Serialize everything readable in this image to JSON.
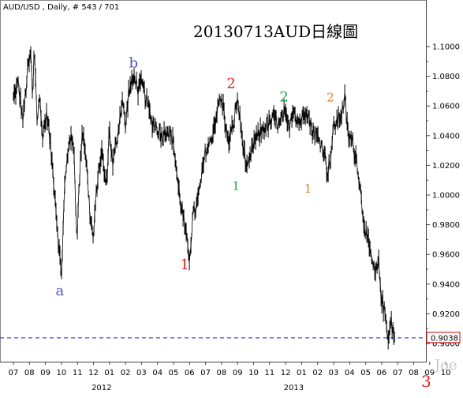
{
  "header": {
    "symbol_info": "AUD/USD , Daily, # 543 / 701",
    "title": "20130713AUD日線圖"
  },
  "footer": {
    "watermark": "Joe",
    "page_number": "3"
  },
  "colors": {
    "price": "#000000",
    "dashed_line": "#1a1acc",
    "price_tag_border": "#cc0000",
    "wave_a_b": "#5050c8",
    "wave_red": "#e02020",
    "wave_green": "#20a040",
    "wave_orange": "#e08030"
  },
  "chart_data": {
    "type": "ohlc",
    "title": "20130713AUD日線圖",
    "subtitle": "AUD/USD , Daily, # 543 / 701",
    "y_axis_position": "right",
    "ylim": [
      0.898,
      1.115
    ],
    "y_ticks": [
      {
        "value": 1.1,
        "label": "1.1000"
      },
      {
        "value": 1.08,
        "label": "1.0800"
      },
      {
        "value": 1.06,
        "label": "1.0600"
      },
      {
        "value": 1.04,
        "label": "1.0400"
      },
      {
        "value": 1.02,
        "label": "1.0200"
      },
      {
        "value": 1.0,
        "label": "1.0000"
      },
      {
        "value": 0.98,
        "label": "0.9800"
      },
      {
        "value": 0.96,
        "label": "0.9600"
      },
      {
        "value": 0.94,
        "label": "0.9400"
      },
      {
        "value": 0.92,
        "label": "0.9200"
      },
      {
        "value": 0.9,
        "label": "0.9000"
      }
    ],
    "x_tick_labels": [
      "07",
      "08",
      "09",
      "10",
      "11",
      "12",
      "01",
      "02",
      "03",
      "04",
      "05",
      "06",
      "07",
      "08",
      "09",
      "10",
      "11",
      "12",
      "01",
      "02",
      "03",
      "04",
      "05",
      "06",
      "07",
      "08",
      "09",
      "10"
    ],
    "year_labels": [
      {
        "label": "2012",
        "month_index": 6
      },
      {
        "label": "2013",
        "month_index": 18
      }
    ],
    "last_price": {
      "value": 0.9038,
      "label": "0.9038"
    },
    "price_path": [
      [
        0.0,
        1.065
      ],
      [
        0.3,
        1.075
      ],
      [
        0.6,
        1.05
      ],
      [
        0.9,
        1.085
      ],
      [
        1.1,
        1.095
      ],
      [
        1.2,
        1.06
      ],
      [
        1.3,
        1.1
      ],
      [
        1.4,
        1.075
      ],
      [
        1.5,
        1.045
      ],
      [
        1.6,
        1.07
      ],
      [
        1.8,
        1.04
      ],
      [
        2.1,
        1.055
      ],
      [
        2.3,
        1.035
      ],
      [
        2.6,
        1.0
      ],
      [
        2.8,
        0.97
      ],
      [
        3.0,
        0.945
      ],
      [
        3.2,
        1.005
      ],
      [
        3.5,
        1.04
      ],
      [
        3.8,
        1.03
      ],
      [
        3.9,
        0.985
      ],
      [
        4.0,
        0.975
      ],
      [
        4.1,
        1.005
      ],
      [
        4.3,
        1.045
      ],
      [
        4.5,
        1.03
      ],
      [
        4.8,
        0.985
      ],
      [
        5.0,
        0.97
      ],
      [
        5.2,
        1.005
      ],
      [
        5.5,
        1.03
      ],
      [
        5.8,
        1.005
      ],
      [
        6.0,
        1.045
      ],
      [
        6.2,
        1.02
      ],
      [
        6.5,
        1.04
      ],
      [
        6.8,
        1.065
      ],
      [
        7.0,
        1.045
      ],
      [
        7.2,
        1.07
      ],
      [
        7.4,
        1.075
      ],
      [
        7.6,
        1.08
      ],
      [
        7.8,
        1.07
      ],
      [
        8.0,
        1.075
      ],
      [
        8.3,
        1.065
      ],
      [
        8.6,
        1.05
      ],
      [
        9.0,
        1.045
      ],
      [
        9.3,
        1.04
      ],
      [
        9.6,
        1.045
      ],
      [
        10.0,
        1.035
      ],
      [
        10.3,
        1.005
      ],
      [
        10.6,
        0.985
      ],
      [
        10.8,
        0.97
      ],
      [
        11.0,
        0.958
      ],
      [
        11.2,
        0.985
      ],
      [
        11.5,
        0.995
      ],
      [
        11.8,
        1.015
      ],
      [
        12.0,
        1.03
      ],
      [
        12.3,
        1.035
      ],
      [
        12.6,
        1.05
      ],
      [
        12.9,
        1.065
      ],
      [
        13.1,
        1.06
      ],
      [
        13.4,
        1.035
      ],
      [
        13.7,
        1.045
      ],
      [
        14.0,
        1.065
      ],
      [
        14.2,
        1.045
      ],
      [
        14.4,
        1.03
      ],
      [
        14.6,
        1.015
      ],
      [
        14.8,
        1.025
      ],
      [
        15.0,
        1.035
      ],
      [
        15.3,
        1.04
      ],
      [
        15.6,
        1.045
      ],
      [
        16.0,
        1.048
      ],
      [
        16.3,
        1.052
      ],
      [
        16.6,
        1.046
      ],
      [
        16.9,
        1.055
      ],
      [
        17.2,
        1.045
      ],
      [
        17.5,
        1.06
      ],
      [
        17.7,
        1.05
      ],
      [
        18.0,
        1.05
      ],
      [
        18.3,
        1.06
      ],
      [
        18.6,
        1.045
      ],
      [
        18.9,
        1.04
      ],
      [
        19.2,
        1.035
      ],
      [
        19.4,
        1.03
      ],
      [
        19.6,
        1.015
      ],
      [
        19.8,
        1.025
      ],
      [
        20.0,
        1.045
      ],
      [
        20.2,
        1.05
      ],
      [
        20.5,
        1.055
      ],
      [
        20.7,
        1.065
      ],
      [
        20.9,
        1.04
      ],
      [
        21.2,
        1.035
      ],
      [
        21.5,
        1.02
      ],
      [
        21.8,
        0.99
      ],
      [
        22.0,
        0.975
      ],
      [
        22.3,
        0.96
      ],
      [
        22.6,
        0.945
      ],
      [
        22.8,
        0.955
      ],
      [
        23.0,
        0.93
      ],
      [
        23.2,
        0.92
      ],
      [
        23.4,
        0.905
      ],
      [
        23.6,
        0.915
      ],
      [
        23.8,
        0.903
      ]
    ],
    "wave_labels": [
      {
        "text": "b",
        "month": 7.5,
        "price": 1.086,
        "color_key": "wave_a_b",
        "size": "lg"
      },
      {
        "text": "a",
        "month": 2.9,
        "price": 0.9325,
        "color_key": "wave_a_b",
        "size": "lg"
      },
      {
        "text": "2",
        "month": 13.6,
        "price": 1.072,
        "color_key": "wave_red",
        "size": "lg"
      },
      {
        "text": "1",
        "month": 10.7,
        "price": 0.95,
        "color_key": "wave_red",
        "size": "lg"
      },
      {
        "text": "2",
        "month": 16.9,
        "price": 1.063,
        "color_key": "wave_green",
        "size": "lg"
      },
      {
        "text": "1",
        "month": 13.9,
        "price": 1.0035,
        "color_key": "wave_green",
        "size": "sm"
      },
      {
        "text": "2",
        "month": 19.8,
        "price": 1.063,
        "color_key": "wave_orange",
        "size": "sm"
      },
      {
        "text": "1",
        "month": 18.4,
        "price": 1.0015,
        "color_key": "wave_orange",
        "size": "sm"
      }
    ]
  }
}
